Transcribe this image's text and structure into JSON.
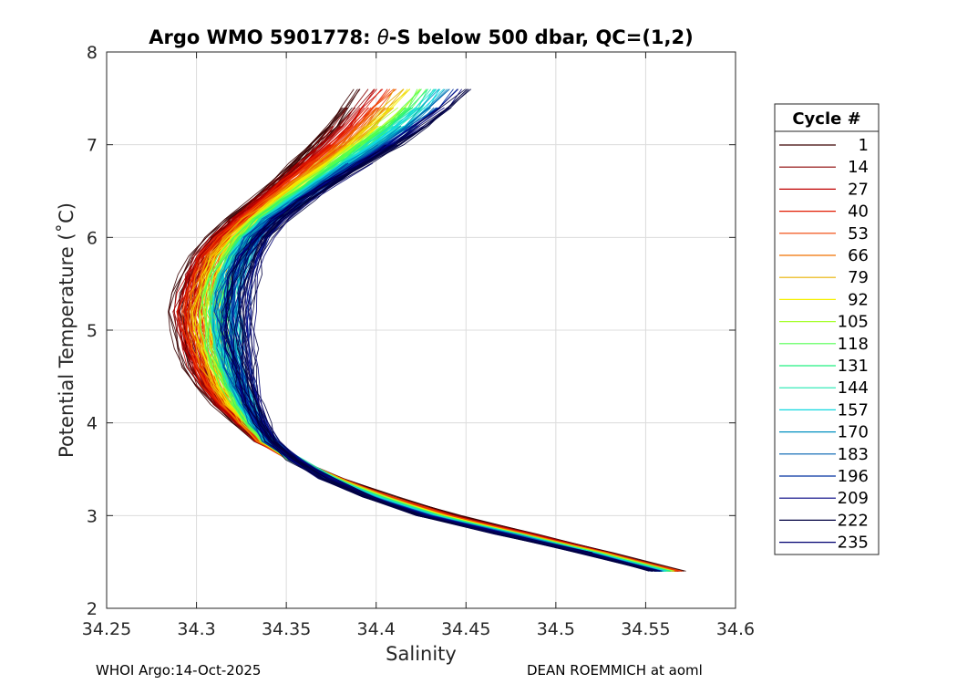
{
  "chart_data": {
    "type": "line",
    "title_prefix": "Argo WMO 5901778: ",
    "title_theta": "θ",
    "title_suffix": "-S below 500 dbar,  QC=(1,2)",
    "xlabel": "Salinity",
    "ylabel": "Potential Temperature (˚C)",
    "xlim": [
      34.25,
      34.6
    ],
    "ylim": [
      2,
      8
    ],
    "xticks": [
      34.25,
      34.3,
      34.35,
      34.4,
      34.45,
      34.5,
      34.55,
      34.6
    ],
    "xtick_labels": [
      "34.25",
      "34.3",
      "34.35",
      "34.4",
      "34.45",
      "34.5",
      "34.55",
      "34.6"
    ],
    "yticks": [
      2,
      3,
      4,
      5,
      6,
      7,
      8
    ],
    "ytick_labels": [
      "2",
      "3",
      "4",
      "5",
      "6",
      "7",
      "8"
    ],
    "grid": true,
    "legend_title": "Cycle #",
    "legend_position": "outside-right",
    "cycles": [
      1,
      14,
      27,
      40,
      53,
      66,
      79,
      92,
      105,
      118,
      131,
      144,
      157,
      170,
      183,
      196,
      209,
      222,
      235
    ],
    "cycle_colors": [
      "#3a0000",
      "#8b0000",
      "#c00000",
      "#e11a00",
      "#f04000",
      "#f07000",
      "#e8b000",
      "#f5f000",
      "#a8ff30",
      "#50ff50",
      "#20f080",
      "#20e8b0",
      "#10d8e0",
      "#0090c0",
      "#0060b0",
      "#0030a0",
      "#000080",
      "#000040",
      "#000070"
    ],
    "series_profile": {
      "description": "theta-S curves per cycle: salinity (PSU) at potential temperature (°C), typical early and late cycles",
      "theta": [
        2.4,
        2.6,
        2.8,
        3.0,
        3.2,
        3.4,
        3.6,
        3.8,
        4.0,
        4.2,
        4.4,
        4.6,
        4.8,
        5.0,
        5.2,
        5.4,
        5.6,
        5.8,
        6.0,
        6.2,
        6.4,
        6.6,
        6.8,
        7.0,
        7.2,
        7.4,
        7.6,
        7.8
      ],
      "salinity_early": [
        34.57,
        34.53,
        34.488,
        34.445,
        34.41,
        34.38,
        34.355,
        34.335,
        34.322,
        34.31,
        34.302,
        34.296,
        34.292,
        34.29,
        34.289,
        34.291,
        34.294,
        34.299,
        34.308,
        34.318,
        34.33,
        34.342,
        34.353,
        34.363,
        34.372,
        34.38,
        34.388,
        34.394
      ],
      "salinity_late": [
        34.555,
        34.515,
        34.47,
        34.425,
        34.395,
        34.372,
        34.355,
        34.343,
        34.337,
        34.333,
        34.33,
        34.328,
        34.326,
        34.325,
        34.325,
        34.326,
        34.328,
        34.332,
        34.338,
        34.348,
        34.362,
        34.378,
        34.395,
        34.412,
        34.428,
        34.442,
        34.452,
        34.456
      ]
    }
  },
  "footer": {
    "left": "WHOI Argo:14-Oct-2025",
    "right": "DEAN ROEMMICH at aoml"
  }
}
